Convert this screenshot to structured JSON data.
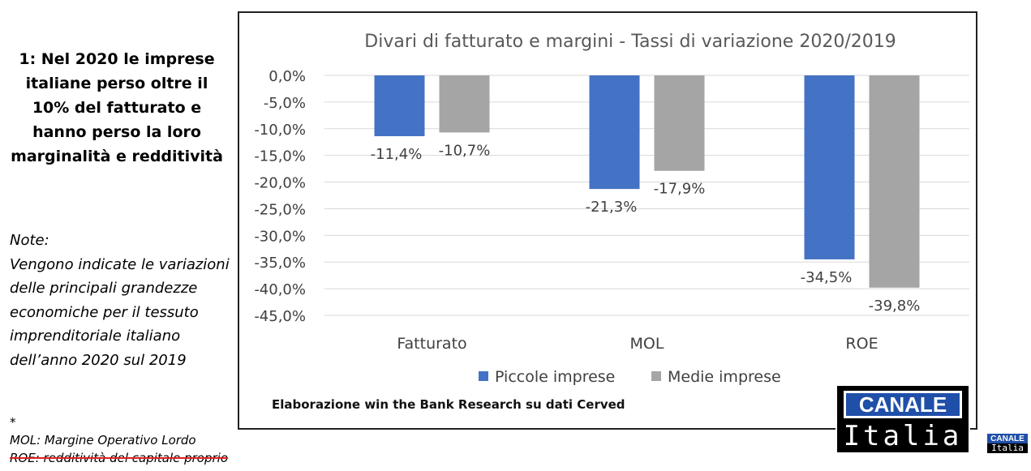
{
  "left_panel": {
    "headline": "1: Nel 2020 le imprese italiane perso oltre il 10% del fatturato e hanno perso la loro marginalità e redditività",
    "notes_title": "Note:",
    "notes_body": "Vengono indicate le variazioni delle principali grandezze economiche per il tessuto imprenditoriale italiano dell’anno 2020 sul 2019",
    "footnote_star": "*",
    "footnote_mol": "MOL: Margine Operativo Lordo",
    "footnote_roe": "ROE: redditività del capitale proprio"
  },
  "chart_data": {
    "type": "bar",
    "title": "Divari di fatturato e margini  - Tassi di variazione 2020/2019",
    "categories": [
      "Fatturato",
      "MOL",
      "ROE"
    ],
    "series": [
      {
        "name": "Piccole imprese",
        "color": "#4472c4",
        "values": [
          -11.4,
          -21.3,
          -34.5
        ],
        "labels": [
          "-11,4%",
          "-21,3%",
          "-34,5%"
        ]
      },
      {
        "name": "Medie imprese",
        "color": "#a5a5a5",
        "values": [
          -10.7,
          -17.9,
          -39.8
        ],
        "labels": [
          "-10,7%",
          "-17,9%",
          "-39,8%"
        ]
      }
    ],
    "ylim": [
      -45,
      0
    ],
    "y_ticks": [
      0,
      -5,
      -10,
      -15,
      -20,
      -25,
      -30,
      -35,
      -40,
      -45
    ],
    "y_tick_labels": [
      "0,0%",
      "-5,0%",
      "-10,0%",
      "-15,0%",
      "-20,0%",
      "-25,0%",
      "-30,0%",
      "-35,0%",
      "-40,0%",
      "-45,0%"
    ],
    "grid": true,
    "legend": "bottom",
    "source_note": "Elaborazione win the Bank Research su dati Cerved"
  },
  "logo": {
    "top": "CANALE",
    "bottom": "Italia"
  },
  "corner_bug": {
    "top": "CANALE",
    "bottom": "Italia"
  }
}
